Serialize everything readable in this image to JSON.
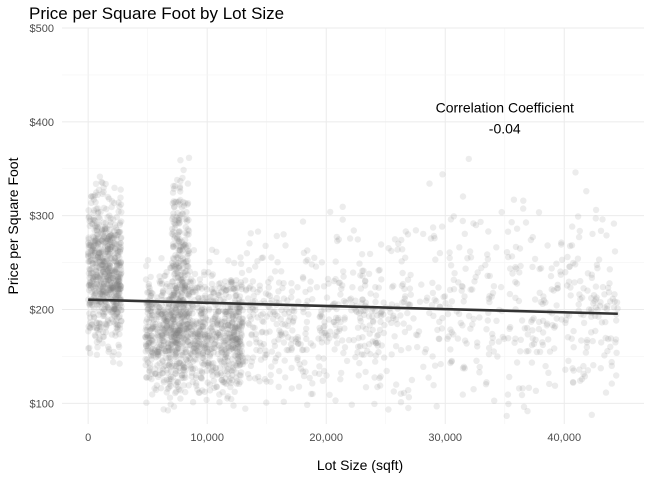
{
  "chart_data": {
    "type": "scatter",
    "title": "Price per Square Foot by Lot Size",
    "xlabel": "Lot Size (sqft)",
    "ylabel": "Price per Square Foot",
    "xlim": [
      -2200,
      46700
    ],
    "ylim": [
      78,
      500
    ],
    "x_ticks": [
      0,
      10000,
      20000,
      30000,
      40000
    ],
    "x_tick_labels": [
      "0",
      "10,000",
      "20,000",
      "30,000",
      "40,000"
    ],
    "y_ticks": [
      100,
      200,
      300,
      400,
      500
    ],
    "y_tick_labels": [
      "$100",
      "$200",
      "$300",
      "$400",
      "$500"
    ],
    "grid": true,
    "point_color": "#808080",
    "trend_line": {
      "x": [
        0,
        44500
      ],
      "y": [
        210.5,
        195.5
      ],
      "color": "#333333"
    },
    "annotation": {
      "label": "Correlation Coefficient",
      "value": "-0.04",
      "x": 35000,
      "y": 410
    },
    "point_clusters": [
      {
        "x_range": [
          0,
          2800
        ],
        "y_center": 240,
        "y_spread": 55,
        "count": 700
      },
      {
        "x_range": [
          4800,
          13000
        ],
        "y_center": 175,
        "y_spread": 45,
        "count": 1100
      },
      {
        "x_range": [
          7000,
          8500
        ],
        "y_center": 250,
        "y_spread": 70,
        "count": 250
      },
      {
        "x_range": [
          12000,
          25000
        ],
        "y_center": 190,
        "y_spread": 60,
        "count": 450
      },
      {
        "x_range": [
          25000,
          44500
        ],
        "y_center": 205,
        "y_spread": 75,
        "count": 450
      }
    ]
  }
}
